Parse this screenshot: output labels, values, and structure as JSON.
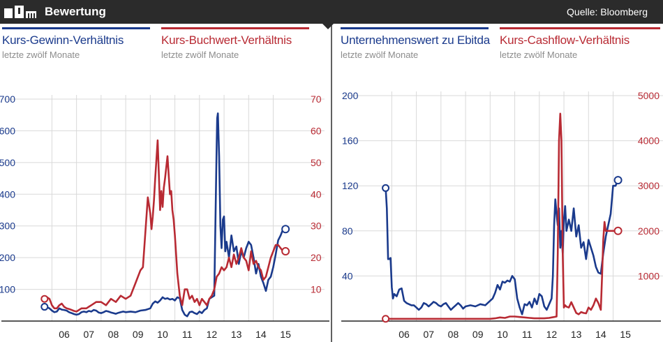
{
  "header": {
    "title": "Bewertung",
    "source": "Quelle: Bloomberg"
  },
  "colors": {
    "blue": "#1a3a8c",
    "red": "#b82a33",
    "grid": "#d9d9d9",
    "header_bg": "#2b2b2b"
  },
  "legends": {
    "kgv": {
      "label": "Kurs-Gewinn-Verhältnis",
      "sub": "letzte zwölf Monate"
    },
    "kbv": {
      "label": "Kurs-Buchwert-Verhältnis",
      "sub": "letzte zwölf Monate"
    },
    "ev": {
      "label": "Unternehmenswert zu Ebitda",
      "sub": "letzte zwölf Monate"
    },
    "kcv": {
      "label": "Kurs-Cashflow-Verhältnis",
      "sub": "letzte zwölf Monate"
    }
  },
  "chart_data": [
    {
      "type": "line",
      "title": "",
      "x_ticks": [
        "06",
        "07",
        "08",
        "09",
        "10",
        "11",
        "12",
        "13",
        "14",
        "15"
      ],
      "xlim": [
        2005.45,
        2015.95
      ],
      "left_axis": {
        "ylim": [
          0,
          700
        ],
        "ticks": [
          100,
          200,
          300,
          400,
          500,
          600,
          700
        ]
      },
      "right_axis": {
        "ylim": [
          0,
          70
        ],
        "ticks": [
          10,
          20,
          30,
          40,
          50,
          60,
          70
        ]
      },
      "series": [
        {
          "name": "Kurs-Gewinn-Verhältnis",
          "axis": "left",
          "color": "blue",
          "end_marker": true,
          "start_marker": true,
          "x": [
            2005.7,
            2005.8,
            2005.9,
            2006.0,
            2006.1,
            2006.2,
            2006.3,
            2006.4,
            2006.5,
            2006.6,
            2006.7,
            2006.8,
            2006.9,
            2007.0,
            2007.1,
            2007.2,
            2007.3,
            2007.4,
            2007.5,
            2007.6,
            2007.7,
            2007.8,
            2007.9,
            2008.0,
            2008.1,
            2008.2,
            2008.3,
            2008.4,
            2008.5,
            2008.6,
            2008.7,
            2008.8,
            2008.9,
            2009.0,
            2009.2,
            2009.4,
            2009.6,
            2009.8,
            2010.0,
            2010.1,
            2010.2,
            2010.3,
            2010.4,
            2010.5,
            2010.6,
            2010.7,
            2010.8,
            2010.9,
            2011.0,
            2011.1,
            2011.2,
            2011.3,
            2011.4,
            2011.5,
            2011.6,
            2011.7,
            2011.8,
            2011.9,
            2012.0,
            2012.1,
            2012.2,
            2012.3,
            2012.4,
            2012.5,
            2012.6,
            2012.7,
            2012.72,
            2012.75,
            2012.8,
            2012.85,
            2012.9,
            2012.95,
            2013.0,
            2013.05,
            2013.1,
            2013.2,
            2013.3,
            2013.4,
            2013.5,
            2013.6,
            2013.7,
            2013.8,
            2013.9,
            2014.0,
            2014.1,
            2014.2,
            2014.3,
            2014.4,
            2014.5,
            2014.6,
            2014.7,
            2014.8,
            2014.9,
            2015.0,
            2015.1,
            2015.2,
            2015.3,
            2015.4,
            2015.5
          ],
          "y": [
            45,
            44,
            40,
            33,
            28,
            30,
            40,
            36,
            35,
            33,
            28,
            25,
            22,
            20,
            22,
            28,
            30,
            28,
            32,
            30,
            35,
            33,
            27,
            25,
            28,
            32,
            30,
            27,
            25,
            23,
            26,
            28,
            30,
            28,
            30,
            28,
            33,
            35,
            40,
            55,
            62,
            58,
            65,
            75,
            70,
            72,
            68,
            70,
            65,
            75,
            72,
            35,
            20,
            15,
            28,
            30,
            25,
            22,
            30,
            25,
            35,
            40,
            70,
            75,
            80,
            560,
            640,
            655,
            520,
            300,
            230,
            320,
            330,
            220,
            250,
            200,
            270,
            220,
            235,
            180,
            220,
            200,
            230,
            250,
            240,
            200,
            150,
            180,
            140,
            120,
            95,
            130,
            140,
            170,
            210,
            255,
            270,
            290,
            290
          ]
        },
        {
          "name": "Kurs-Buchwert-Verhältnis",
          "axis": "right",
          "color": "red",
          "end_marker": true,
          "start_marker": true,
          "x": [
            2005.7,
            2005.8,
            2005.9,
            2006.0,
            2006.1,
            2006.2,
            2006.3,
            2006.4,
            2006.5,
            2006.6,
            2006.7,
            2006.8,
            2006.9,
            2007.0,
            2007.2,
            2007.4,
            2007.6,
            2007.8,
            2008.0,
            2008.2,
            2008.4,
            2008.6,
            2008.8,
            2009.0,
            2009.2,
            2009.4,
            2009.6,
            2009.7,
            2009.8,
            2009.9,
            2010.0,
            2010.05,
            2010.1,
            2010.15,
            2010.2,
            2010.3,
            2010.4,
            2010.45,
            2010.5,
            2010.55,
            2010.6,
            2010.7,
            2010.8,
            2010.85,
            2010.9,
            2010.95,
            2011.0,
            2011.1,
            2011.2,
            2011.3,
            2011.4,
            2011.5,
            2011.6,
            2011.7,
            2011.8,
            2011.9,
            2012.0,
            2012.1,
            2012.2,
            2012.3,
            2012.4,
            2012.5,
            2012.6,
            2012.7,
            2012.8,
            2012.9,
            2013.0,
            2013.1,
            2013.2,
            2013.3,
            2013.4,
            2013.5,
            2013.6,
            2013.7,
            2013.8,
            2013.9,
            2014.0,
            2014.1,
            2014.2,
            2014.3,
            2014.4,
            2014.5,
            2014.6,
            2014.7,
            2014.8,
            2014.9,
            2015.0,
            2015.1,
            2015.2,
            2015.3,
            2015.4,
            2015.5
          ],
          "y": [
            7,
            7.5,
            7,
            5,
            4,
            4,
            5,
            5.5,
            4.5,
            4,
            3.8,
            3.5,
            3.2,
            3,
            4,
            4,
            5,
            6,
            6,
            5,
            7,
            6,
            8,
            7,
            8,
            12,
            16,
            17,
            28,
            39,
            34,
            29,
            33,
            38,
            45,
            57,
            35,
            41,
            36,
            42,
            45,
            52,
            40,
            41,
            35,
            32,
            27,
            15,
            8,
            5,
            10,
            10,
            7,
            8,
            6,
            7,
            5,
            7,
            6,
            5,
            7,
            8,
            10,
            14,
            15,
            17,
            16,
            17,
            20,
            17,
            21,
            18,
            20,
            23,
            20,
            19,
            16,
            22,
            18,
            19,
            17,
            16,
            13,
            14,
            17,
            20,
            22,
            24,
            24,
            23,
            22,
            22
          ]
        }
      ]
    },
    {
      "type": "line",
      "title": "",
      "x_ticks": [
        "06",
        "07",
        "08",
        "09",
        "10",
        "11",
        "12",
        "13",
        "14",
        "15"
      ],
      "xlim": [
        2005.45,
        2015.95
      ],
      "left_axis": {
        "ylim": [
          0,
          200
        ],
        "ticks": [
          40,
          80,
          120,
          160,
          200
        ]
      },
      "right_axis": {
        "ylim": [
          0,
          5000
        ],
        "ticks": [
          1000,
          2000,
          3000,
          4000,
          5000
        ]
      },
      "series": [
        {
          "name": "Unternehmenswert zu Ebitda",
          "axis": "left",
          "color": "blue",
          "end_marker": true,
          "start_marker": true,
          "x": [
            2005.75,
            2005.8,
            2005.85,
            2005.9,
            2005.95,
            2006.0,
            2006.05,
            2006.1,
            2006.2,
            2006.3,
            2006.4,
            2006.5,
            2006.6,
            2006.7,
            2006.8,
            2006.9,
            2007.0,
            2007.1,
            2007.2,
            2007.3,
            2007.4,
            2007.5,
            2007.6,
            2007.7,
            2007.8,
            2007.9,
            2008.0,
            2008.1,
            2008.2,
            2008.3,
            2008.4,
            2008.5,
            2008.6,
            2008.7,
            2008.8,
            2008.9,
            2009.0,
            2009.2,
            2009.4,
            2009.6,
            2009.8,
            2010.0,
            2010.1,
            2010.2,
            2010.3,
            2010.4,
            2010.5,
            2010.6,
            2010.7,
            2010.8,
            2010.9,
            2011.0,
            2011.1,
            2011.2,
            2011.3,
            2011.4,
            2011.5,
            2011.6,
            2011.7,
            2011.8,
            2011.9,
            2012.0,
            2012.1,
            2012.2,
            2012.3,
            2012.4,
            2012.5,
            2012.55,
            2012.6,
            2012.65,
            2012.7,
            2012.75,
            2012.8,
            2012.85,
            2012.9,
            2012.95,
            2013.0,
            2013.05,
            2013.1,
            2013.2,
            2013.3,
            2013.4,
            2013.5,
            2013.6,
            2013.7,
            2013.8,
            2013.9,
            2014.0,
            2014.1,
            2014.2,
            2014.3,
            2014.4,
            2014.5,
            2014.6,
            2014.7,
            2014.8,
            2014.9,
            2015.0,
            2015.1,
            2015.2
          ],
          "y": [
            118,
            100,
            55,
            55,
            56,
            30,
            20,
            24,
            22,
            28,
            29,
            18,
            16,
            15,
            14,
            14,
            12,
            10,
            12,
            16,
            15,
            13,
            15,
            17,
            16,
            14,
            13,
            15,
            16,
            13,
            10,
            12,
            14,
            16,
            14,
            11,
            13,
            14,
            13,
            15,
            14,
            18,
            20,
            25,
            32,
            28,
            35,
            34,
            36,
            35,
            40,
            37,
            20,
            12,
            6,
            15,
            14,
            17,
            12,
            20,
            15,
            24,
            22,
            13,
            10,
            15,
            20,
            40,
            85,
            108,
            95,
            85,
            100,
            65,
            80,
            60,
            90,
            102,
            80,
            90,
            80,
            100,
            75,
            85,
            65,
            70,
            55,
            72,
            65,
            58,
            48,
            43,
            42,
            60,
            75,
            85,
            95,
            120,
            120,
            125
          ]
        },
        {
          "name": "Kurs-Cashflow-Verhältnis",
          "axis": "right",
          "color": "red",
          "end_marker": true,
          "start_marker": true,
          "x": [
            2005.75,
            2006.0,
            2006.5,
            2007.0,
            2007.5,
            2008.0,
            2008.5,
            2009.0,
            2009.5,
            2010.0,
            2010.2,
            2010.4,
            2010.6,
            2010.8,
            2011.0,
            2011.2,
            2011.4,
            2011.6,
            2011.8,
            2012.0,
            2012.2,
            2012.4,
            2012.5,
            2012.6,
            2012.7,
            2012.75,
            2012.8,
            2012.85,
            2012.9,
            2012.95,
            2013.0,
            2013.05,
            2013.1,
            2013.2,
            2013.3,
            2013.4,
            2013.5,
            2013.6,
            2013.7,
            2013.8,
            2013.9,
            2014.0,
            2014.1,
            2014.2,
            2014.3,
            2014.4,
            2014.5,
            2014.55,
            2014.6,
            2014.65,
            2014.7,
            2014.8,
            2014.9,
            2015.0,
            2015.1,
            2015.2
          ],
          "y": [
            50,
            50,
            50,
            50,
            50,
            50,
            50,
            50,
            50,
            50,
            60,
            80,
            70,
            100,
            100,
            90,
            80,
            70,
            60,
            60,
            60,
            70,
            80,
            90,
            100,
            1500,
            4000,
            4600,
            4000,
            1500,
            300,
            350,
            320,
            300,
            420,
            300,
            180,
            150,
            200,
            180,
            170,
            300,
            250,
            350,
            500,
            400,
            250,
            1000,
            1800,
            2200,
            2000,
            2000,
            2000,
            2000,
            2000,
            2000
          ]
        }
      ]
    }
  ]
}
